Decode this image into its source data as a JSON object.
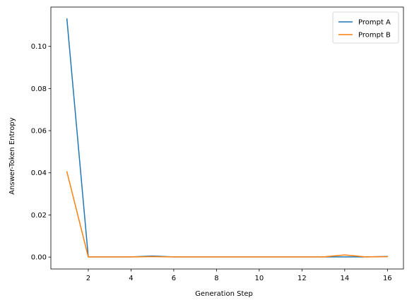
{
  "chart_data": {
    "type": "line",
    "xlabel": "Generation Step",
    "ylabel": "Answer-Token Entropy",
    "x": [
      1,
      2,
      3,
      4,
      5,
      6,
      7,
      8,
      9,
      10,
      11,
      12,
      13,
      14,
      15,
      16
    ],
    "series": [
      {
        "name": "Prompt A",
        "color": "#1f77b4",
        "values": [
          0.113,
          0.0001,
          0.0001,
          0.0001,
          0.0005,
          0.0001,
          0.0001,
          0.0001,
          0.0001,
          0.0001,
          0.0001,
          0.0001,
          0.0001,
          0.0001,
          0.0001,
          0.0003
        ]
      },
      {
        "name": "Prompt B",
        "color": "#ff7f0e",
        "values": [
          0.0405,
          0.0001,
          0.0001,
          0.0001,
          0.0002,
          0.0001,
          0.0001,
          0.0001,
          0.0001,
          0.0001,
          0.0001,
          0.0001,
          0.0001,
          0.001,
          0.0001,
          0.0002
        ]
      }
    ],
    "xlim": [
      0.25,
      16.75
    ],
    "ylim": [
      -0.00565,
      0.11865
    ],
    "xticks": [
      2,
      4,
      6,
      8,
      10,
      12,
      14,
      16
    ],
    "yticks": [
      0.0,
      0.02,
      0.04,
      0.06,
      0.08,
      0.1
    ],
    "ytick_labels": [
      "0.00",
      "0.02",
      "0.04",
      "0.06",
      "0.08",
      "0.10"
    ],
    "grid": false,
    "legend_position": "top-right"
  }
}
